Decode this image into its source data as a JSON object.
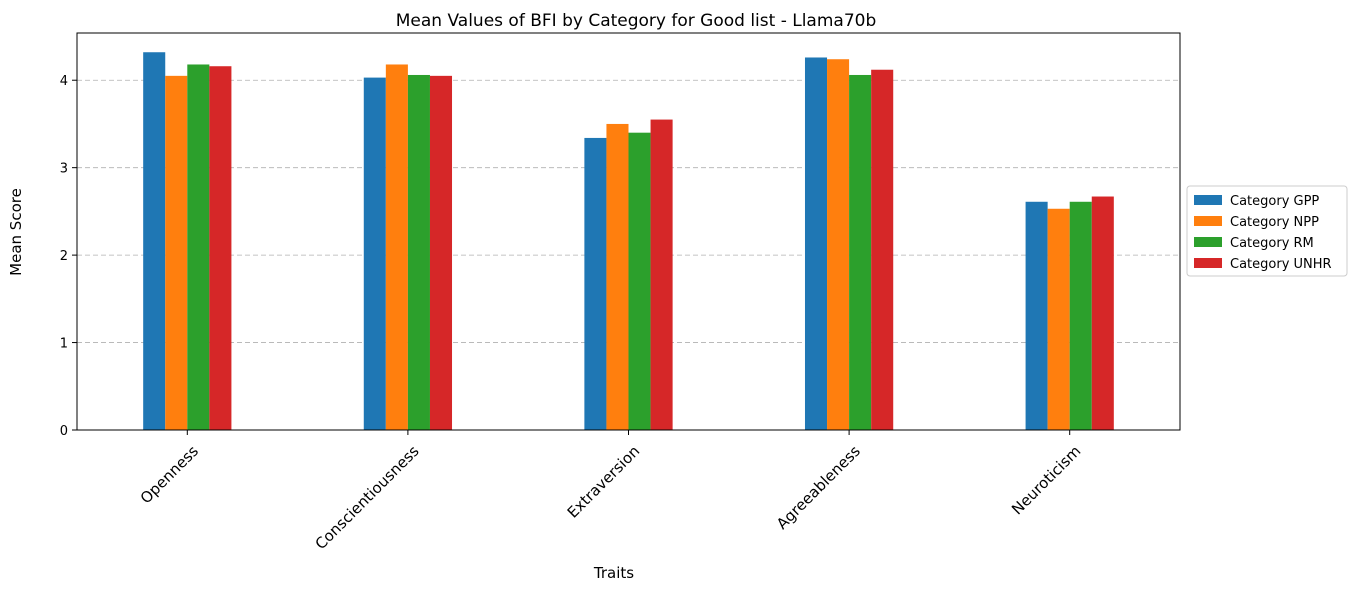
{
  "chart_data": {
    "type": "bar",
    "title": "Mean Values of BFI by Category for Good list - Llama70b",
    "xlabel": "Traits",
    "ylabel": "Mean Score",
    "categories": [
      "Openness",
      "Conscientiousness",
      "Extraversion",
      "Agreeableness",
      "Neuroticism"
    ],
    "ylim": [
      0,
      4.54
    ],
    "yticks": [
      0,
      1,
      2,
      3,
      4
    ],
    "grid": "y-dashed",
    "legend_position": "center-right-outside",
    "series": [
      {
        "name": "Category GPP",
        "color": "#1f77b4",
        "values": [
          4.32,
          4.03,
          3.34,
          4.26,
          2.61
        ]
      },
      {
        "name": "Category NPP",
        "color": "#ff7f0e",
        "values": [
          4.05,
          4.18,
          3.5,
          4.24,
          2.53
        ]
      },
      {
        "name": "Category RM",
        "color": "#2ca02c",
        "values": [
          4.18,
          4.06,
          3.4,
          4.06,
          2.61
        ]
      },
      {
        "name": "Category UNHR",
        "color": "#d62728",
        "values": [
          4.16,
          4.05,
          3.55,
          4.12,
          2.67
        ]
      }
    ]
  }
}
